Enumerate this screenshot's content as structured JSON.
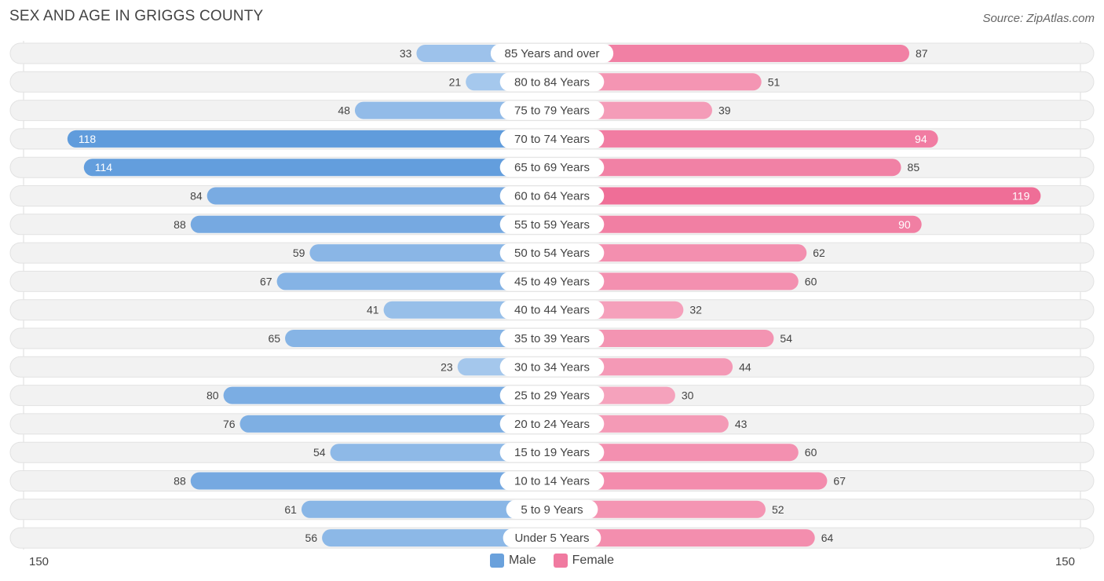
{
  "header": {
    "title": "SEX AND AGE IN GRIGGS COUNTY",
    "source": "Source: ZipAtlas.com"
  },
  "legend": {
    "male_label": "Male",
    "female_label": "Female"
  },
  "axis": {
    "left_label": "150",
    "right_label": "150"
  },
  "colors": {
    "male": "#6aa1dc",
    "female": "#f07aa0"
  },
  "chart_data": {
    "type": "bar",
    "orientation": "horizontal-diverging",
    "title": "SEX AND AGE IN GRIGGS COUNTY",
    "xlim": [
      -150,
      150
    ],
    "categories": [
      "85 Years and over",
      "80 to 84 Years",
      "75 to 79 Years",
      "70 to 74 Years",
      "65 to 69 Years",
      "60 to 64 Years",
      "55 to 59 Years",
      "50 to 54 Years",
      "45 to 49 Years",
      "40 to 44 Years",
      "35 to 39 Years",
      "30 to 34 Years",
      "25 to 29 Years",
      "20 to 24 Years",
      "15 to 19 Years",
      "10 to 14 Years",
      "5 to 9 Years",
      "Under 5 Years"
    ],
    "series": [
      {
        "name": "Male",
        "values": [
          33,
          21,
          48,
          118,
          114,
          84,
          88,
          59,
          67,
          41,
          65,
          23,
          80,
          76,
          54,
          88,
          61,
          56
        ]
      },
      {
        "name": "Female",
        "values": [
          87,
          51,
          39,
          94,
          85,
          119,
          90,
          62,
          60,
          32,
          54,
          44,
          30,
          43,
          60,
          67,
          52,
          64
        ]
      }
    ],
    "legend": "bottom-center",
    "grid": false
  }
}
